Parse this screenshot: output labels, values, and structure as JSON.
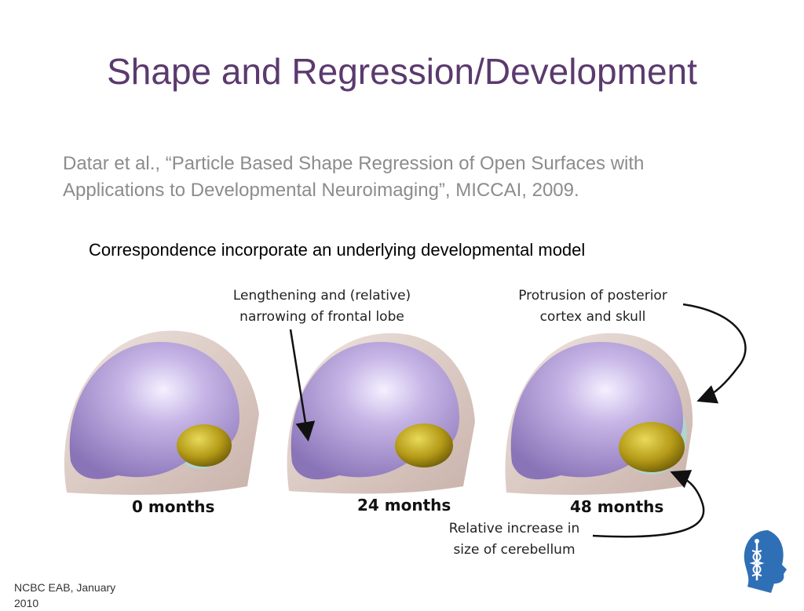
{
  "slide": {
    "title": "Shape and Regression/Development",
    "citation_line1": "Datar et al., “Particle Based Shape Regression of Open Surfaces with",
    "citation_line2": "Applications to Developmental Neuroimaging”, MICCAI, 2009.",
    "subtitle": "Correspondence incorporate an underlying developmental model"
  },
  "figure": {
    "annotations": {
      "frontal_line1": "Lengthening and (relative)",
      "frontal_line2": "narrowing of frontal lobe",
      "posterior_line1": "Protrusion of posterior",
      "posterior_line2": "cortex and skull",
      "cerebellum_line1": "Relative increase in",
      "cerebellum_line2": "size of cerebellum"
    },
    "ages": [
      "0 months",
      "24 months",
      "48 months"
    ],
    "colors": {
      "brain": "#b7a3d8",
      "cerebellum": "#b8a11e",
      "skull": "#d9c6c0",
      "ventricle": "#a9d9d2"
    }
  },
  "footer": {
    "line1": "NCBC EAB, January",
    "line2": "2010"
  }
}
